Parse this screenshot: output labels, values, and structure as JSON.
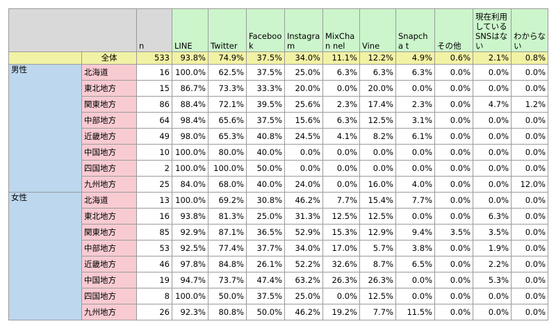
{
  "header": {
    "n": "n",
    "columns": [
      "LINE",
      "Twitter",
      "Faceboo k",
      "Instagra m",
      "MixChan nel",
      "Vine",
      "Snapcha t",
      "その他",
      "現在利用 している SNSはな い",
      "わからな い"
    ]
  },
  "total": {
    "label": "全体",
    "n": "533",
    "values": [
      "93.8%",
      "74.9%",
      "37.5%",
      "34.0%",
      "11.1%",
      "12.2%",
      "4.9%",
      "0.6%",
      "2.1%",
      "0.8%"
    ]
  },
  "groups": [
    {
      "label": "男性",
      "rows": [
        {
          "region": "北海道",
          "n": "16",
          "values": [
            "100.0%",
            "62.5%",
            "37.5%",
            "25.0%",
            "6.3%",
            "6.3%",
            "6.3%",
            "0.0%",
            "0.0%",
            "0.0%"
          ]
        },
        {
          "region": "東北地方",
          "n": "15",
          "values": [
            "86.7%",
            "73.3%",
            "33.3%",
            "20.0%",
            "0.0%",
            "20.0%",
            "0.0%",
            "0.0%",
            "0.0%",
            "0.0%"
          ]
        },
        {
          "region": "関東地方",
          "n": "86",
          "values": [
            "88.4%",
            "72.1%",
            "39.5%",
            "25.6%",
            "2.3%",
            "17.4%",
            "2.3%",
            "0.0%",
            "4.7%",
            "1.2%"
          ]
        },
        {
          "region": "中部地方",
          "n": "64",
          "values": [
            "98.4%",
            "65.6%",
            "37.5%",
            "15.6%",
            "6.3%",
            "12.5%",
            "3.1%",
            "0.0%",
            "0.0%",
            "0.0%"
          ]
        },
        {
          "region": "近畿地方",
          "n": "49",
          "values": [
            "98.0%",
            "65.3%",
            "40.8%",
            "24.5%",
            "4.1%",
            "8.2%",
            "6.1%",
            "0.0%",
            "0.0%",
            "0.0%"
          ]
        },
        {
          "region": "中国地方",
          "n": "10",
          "values": [
            "100.0%",
            "80.0%",
            "40.0%",
            "0.0%",
            "0.0%",
            "0.0%",
            "0.0%",
            "0.0%",
            "0.0%",
            "0.0%"
          ]
        },
        {
          "region": "四国地方",
          "n": "2",
          "values": [
            "100.0%",
            "100.0%",
            "50.0%",
            "0.0%",
            "0.0%",
            "0.0%",
            "0.0%",
            "0.0%",
            "0.0%",
            "0.0%"
          ]
        },
        {
          "region": "九州地方",
          "n": "25",
          "values": [
            "84.0%",
            "68.0%",
            "40.0%",
            "24.0%",
            "0.0%",
            "16.0%",
            "4.0%",
            "0.0%",
            "0.0%",
            "12.0%"
          ]
        }
      ]
    },
    {
      "label": "女性",
      "rows": [
        {
          "region": "北海道",
          "n": "13",
          "values": [
            "100.0%",
            "69.2%",
            "30.8%",
            "46.2%",
            "7.7%",
            "15.4%",
            "7.7%",
            "0.0%",
            "0.0%",
            "0.0%"
          ]
        },
        {
          "region": "東北地方",
          "n": "16",
          "values": [
            "93.8%",
            "81.3%",
            "25.0%",
            "31.3%",
            "12.5%",
            "12.5%",
            "0.0%",
            "0.0%",
            "6.3%",
            "0.0%"
          ]
        },
        {
          "region": "関東地方",
          "n": "85",
          "values": [
            "92.9%",
            "87.1%",
            "36.5%",
            "52.9%",
            "15.3%",
            "12.9%",
            "9.4%",
            "3.5%",
            "3.5%",
            "0.0%"
          ]
        },
        {
          "region": "中部地方",
          "n": "53",
          "values": [
            "92.5%",
            "77.4%",
            "37.7%",
            "34.0%",
            "17.0%",
            "5.7%",
            "3.8%",
            "0.0%",
            "1.9%",
            "0.0%"
          ]
        },
        {
          "region": "近畿地方",
          "n": "46",
          "values": [
            "97.8%",
            "84.8%",
            "26.1%",
            "52.2%",
            "32.6%",
            "8.7%",
            "6.5%",
            "0.0%",
            "2.2%",
            "0.0%"
          ]
        },
        {
          "region": "中国地方",
          "n": "19",
          "values": [
            "94.7%",
            "73.7%",
            "47.4%",
            "63.2%",
            "26.3%",
            "26.3%",
            "0.0%",
            "0.0%",
            "5.3%",
            "0.0%"
          ]
        },
        {
          "region": "四国地方",
          "n": "8",
          "values": [
            "100.0%",
            "50.0%",
            "37.5%",
            "25.0%",
            "0.0%",
            "12.5%",
            "0.0%",
            "0.0%",
            "0.0%",
            "0.0%"
          ]
        },
        {
          "region": "九州地方",
          "n": "26",
          "values": [
            "92.3%",
            "80.8%",
            "50.0%",
            "46.2%",
            "19.2%",
            "7.7%",
            "11.5%",
            "0.0%",
            "0.0%",
            "0.0%"
          ]
        }
      ]
    }
  ]
}
